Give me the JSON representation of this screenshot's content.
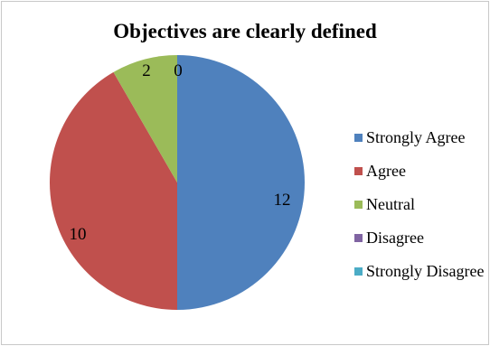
{
  "chart_data": {
    "type": "pie",
    "title": "Objectives are clearly defined",
    "categories": [
      "Strongly Agree",
      "Agree",
      "Neutral",
      "Disagree",
      "Strongly Disagree"
    ],
    "values": [
      12,
      10,
      2,
      0,
      0
    ],
    "colors": [
      "#4f81bd",
      "#c0504d",
      "#9bbb59",
      "#8064a2",
      "#4bacc6"
    ],
    "data_labels": [
      "12",
      "10",
      "2",
      "0",
      ""
    ],
    "legend_position": "right",
    "start_angle": "top, clockwise"
  }
}
